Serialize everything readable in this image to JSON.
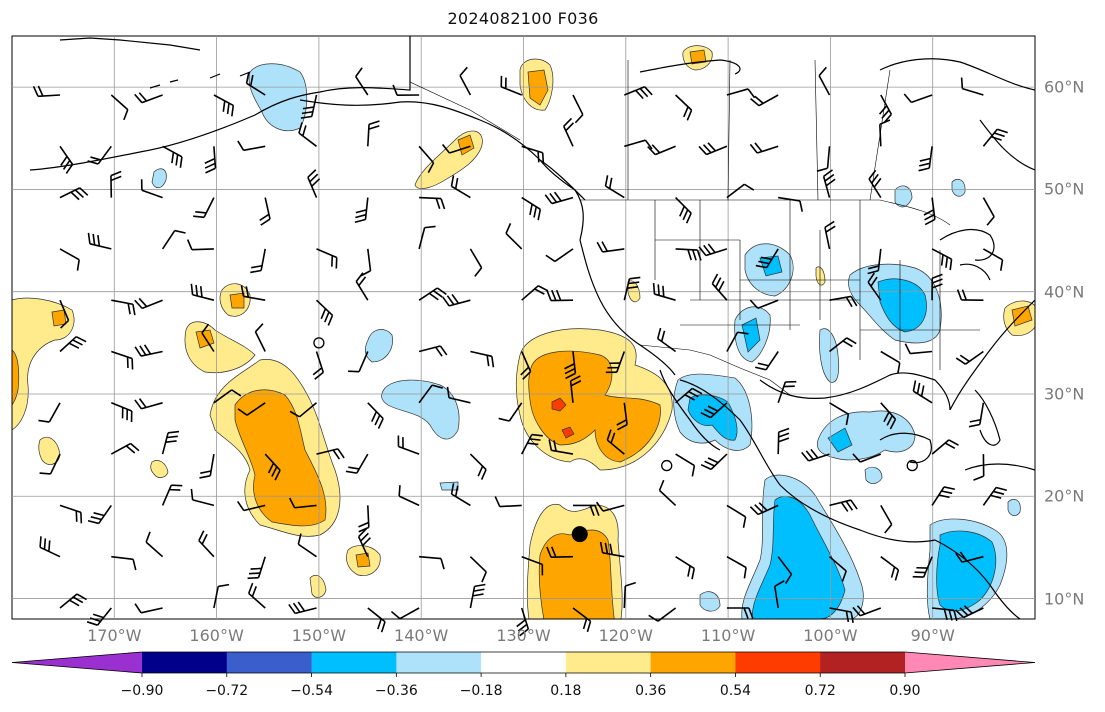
{
  "title": "2024082100 F036",
  "map": {
    "projection": "cylindrical",
    "lon_range": [
      -180,
      -80
    ],
    "lat_range": [
      8,
      65
    ],
    "lon_ticks": [
      {
        "value": -170,
        "label": "170°W"
      },
      {
        "value": -160,
        "label": "160°W"
      },
      {
        "value": -150,
        "label": "150°W"
      },
      {
        "value": -140,
        "label": "140°W"
      },
      {
        "value": -130,
        "label": "130°W"
      },
      {
        "value": -120,
        "label": "120°W"
      },
      {
        "value": -110,
        "label": "110°W"
      },
      {
        "value": -100,
        "label": "100°W"
      },
      {
        "value": -90,
        "label": "90°W"
      }
    ],
    "lat_ticks": [
      {
        "value": 60,
        "label": "60°N"
      },
      {
        "value": 50,
        "label": "50°N"
      },
      {
        "value": 40,
        "label": "40°N"
      },
      {
        "value": 30,
        "label": "30°N"
      },
      {
        "value": 20,
        "label": "20°N"
      },
      {
        "value": 10,
        "label": "10°N"
      }
    ],
    "grid": true,
    "features": [
      "coastlines",
      "country borders",
      "US state borders",
      "wind barbs",
      "filled contours"
    ]
  },
  "colorbar": {
    "orientation": "horizontal",
    "extend": "both",
    "levels": [
      -0.9,
      -0.72,
      -0.54,
      -0.36,
      -0.18,
      0.18,
      0.36,
      0.54,
      0.72,
      0.9
    ],
    "tick_labels": [
      "−0.90",
      "−0.72",
      "−0.54",
      "−0.36",
      "−0.18",
      "0.18",
      "0.36",
      "0.54",
      "0.72",
      "0.90"
    ],
    "colors": [
      "#9b30d0",
      "#00008b",
      "#3a5fcd",
      "#00bfff",
      "#aee2fa",
      "#ffffff",
      "#ffea8c",
      "#ffa500",
      "#ff3c00",
      "#b22222",
      "#ff88b4"
    ]
  },
  "marker": {
    "lon": -124.5,
    "lat": 16.3,
    "symbol": "filled-circle"
  },
  "calm_circles": [
    {
      "lon": -150,
      "lat": 35
    },
    {
      "lon": -116,
      "lat": 23
    },
    {
      "lon": -92,
      "lat": 23
    }
  ]
}
